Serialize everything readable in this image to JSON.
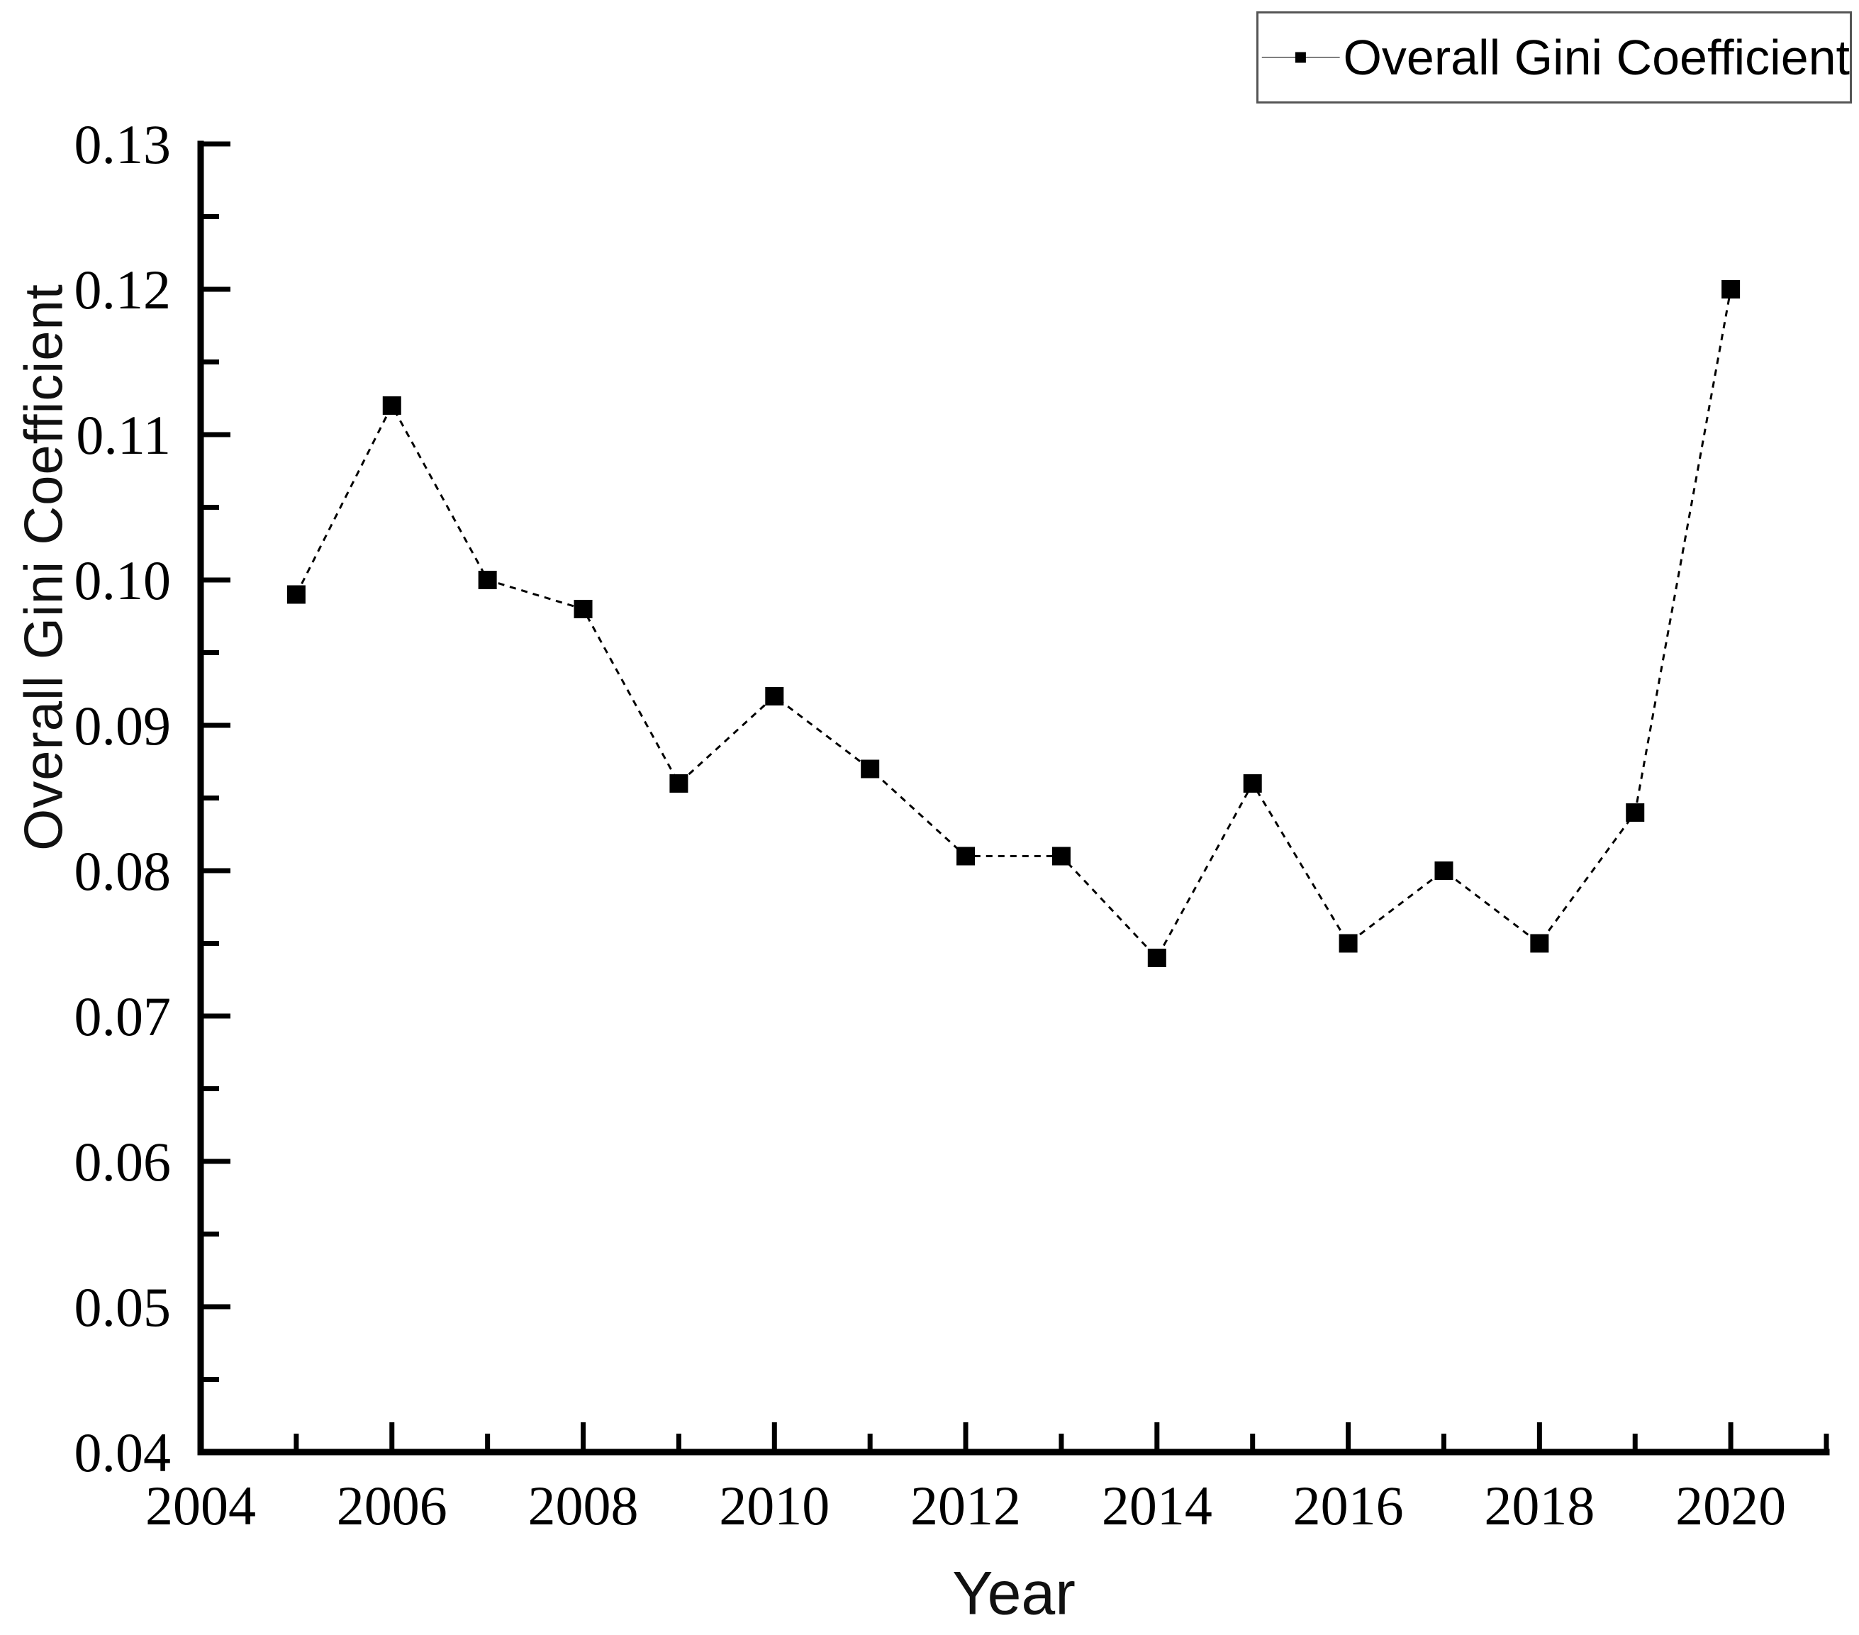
{
  "chart_data": {
    "type": "line",
    "title": "",
    "xlabel": "Year",
    "ylabel": "Overall Gini Coefficient",
    "legend": {
      "label": "Overall Gini Coefficient",
      "position": "top-right",
      "marker": "filled-square",
      "line_style": "solid-with-marker"
    },
    "series": [
      {
        "name": "Overall Gini Coefficient",
        "x": [
          2005,
          2006,
          2007,
          2008,
          2009,
          2010,
          2011,
          2012,
          2013,
          2014,
          2015,
          2016,
          2017,
          2018,
          2019,
          2020
        ],
        "values": [
          0.099,
          0.112,
          0.1,
          0.098,
          0.086,
          0.092,
          0.087,
          0.081,
          0.081,
          0.074,
          0.086,
          0.075,
          0.08,
          0.075,
          0.084,
          0.12
        ]
      }
    ],
    "line_style": "dashed",
    "marker": "filled-square",
    "xlim": [
      2004,
      2021
    ],
    "ylim": [
      0.04,
      0.13
    ],
    "x_major_ticks": [
      2004,
      2006,
      2008,
      2010,
      2012,
      2014,
      2016,
      2018,
      2020
    ],
    "x_tick_labels": [
      "2004",
      "2006",
      "2008",
      "2010",
      "2012",
      "2014",
      "2016",
      "2018",
      "2020"
    ],
    "x_minor_ticks": [
      2005,
      2007,
      2009,
      2011,
      2013,
      2015,
      2017,
      2019,
      2021
    ],
    "y_major_ticks": [
      0.04,
      0.05,
      0.06,
      0.07,
      0.08,
      0.09,
      0.1,
      0.11,
      0.12,
      0.13
    ],
    "y_tick_labels": [
      "0.04",
      "0.05",
      "0.06",
      "0.07",
      "0.08",
      "0.09",
      "0.10",
      "0.11",
      "0.12",
      "0.13"
    ],
    "y_minor_ticks": [
      0.045,
      0.055,
      0.065,
      0.075,
      0.085,
      0.095,
      0.105,
      0.115,
      0.125
    ],
    "grid": false,
    "colors": {
      "line": "#000000",
      "marker": "#000000",
      "axis": "#000000",
      "text": "#000000",
      "background": "#ffffff"
    }
  }
}
